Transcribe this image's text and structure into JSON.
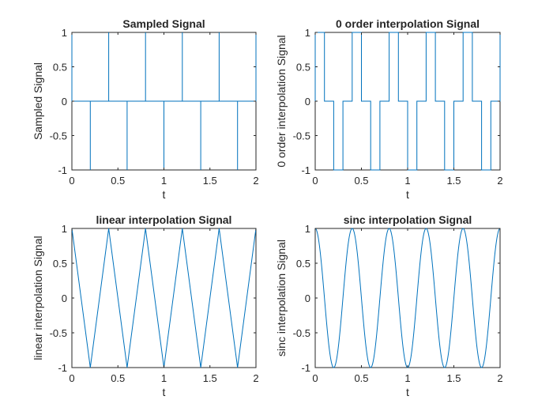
{
  "figure": {
    "background": "#ffffff",
    "axis_color": "#262626",
    "line_color": "#0072BD"
  },
  "chart_data": [
    {
      "type": "line",
      "title": "Sampled Signal",
      "xlabel": "t",
      "ylabel": "Sampled Signal",
      "xlim": [
        0,
        2
      ],
      "ylim": [
        -1,
        1
      ],
      "xticks": [
        "0",
        "0.5",
        "1",
        "1.5",
        "2"
      ],
      "yticks": [
        "-1",
        "-0.5",
        "0",
        "0.5",
        "1"
      ],
      "grid": false,
      "style": "stem-like",
      "series": [
        {
          "samples_t": [
            0,
            0.2,
            0.4,
            0.6,
            0.8,
            1.0,
            1.2,
            1.4,
            1.6,
            1.8,
            2.0
          ],
          "samples_y": [
            1,
            -1,
            1,
            -1,
            1,
            -1,
            1,
            -1,
            1,
            -1,
            1
          ]
        }
      ]
    },
    {
      "type": "line",
      "title": "0 order interpolation Signal",
      "xlabel": "t",
      "ylabel": "0 order interpolation Signal",
      "xlim": [
        0,
        2
      ],
      "ylim": [
        -1,
        1
      ],
      "xticks": [
        "0",
        "0.5",
        "1",
        "1.5",
        "2"
      ],
      "yticks": [
        "-1",
        "-0.5",
        "0",
        "0.5",
        "1"
      ],
      "grid": false,
      "style": "step",
      "series": [
        {
          "samples_t": [
            0,
            0.2,
            0.4,
            0.6,
            0.8,
            1.0,
            1.2,
            1.4,
            1.6,
            1.8,
            2.0
          ],
          "samples_y": [
            1,
            -1,
            1,
            -1,
            1,
            -1,
            1,
            -1,
            1,
            -1,
            1
          ],
          "hold_width": 0.1
        }
      ]
    },
    {
      "type": "line",
      "title": "linear interpolation Signal",
      "xlabel": "t",
      "ylabel": "linear interpolation Signal",
      "xlim": [
        0,
        2
      ],
      "ylim": [
        -1,
        1
      ],
      "xticks": [
        "0",
        "0.5",
        "1",
        "1.5",
        "2"
      ],
      "yticks": [
        "-1",
        "-0.5",
        "0",
        "0.5",
        "1"
      ],
      "grid": false,
      "style": "linear",
      "series": [
        {
          "x": [
            0,
            0.2,
            0.4,
            0.6,
            0.8,
            1.0,
            1.2,
            1.4,
            1.6,
            1.8,
            2.0
          ],
          "y": [
            1,
            -1,
            1,
            -1,
            1,
            -1,
            1,
            -1,
            1,
            -1,
            1
          ]
        }
      ]
    },
    {
      "type": "line",
      "title": "sinc interpolation Signal",
      "xlabel": "t",
      "ylabel": "sinc interpolation Signal",
      "xlim": [
        0,
        2
      ],
      "ylim": [
        -1,
        1
      ],
      "xticks": [
        "0",
        "0.5",
        "1",
        "1.5",
        "2"
      ],
      "yticks": [
        "-1",
        "-0.5",
        "0",
        "0.5",
        "1"
      ],
      "grid": false,
      "style": "sinc",
      "series": [
        {
          "frequency_hz": 2.5,
          "amplitude": 1,
          "function": "cos",
          "x_range": [
            0,
            2
          ]
        }
      ]
    }
  ]
}
